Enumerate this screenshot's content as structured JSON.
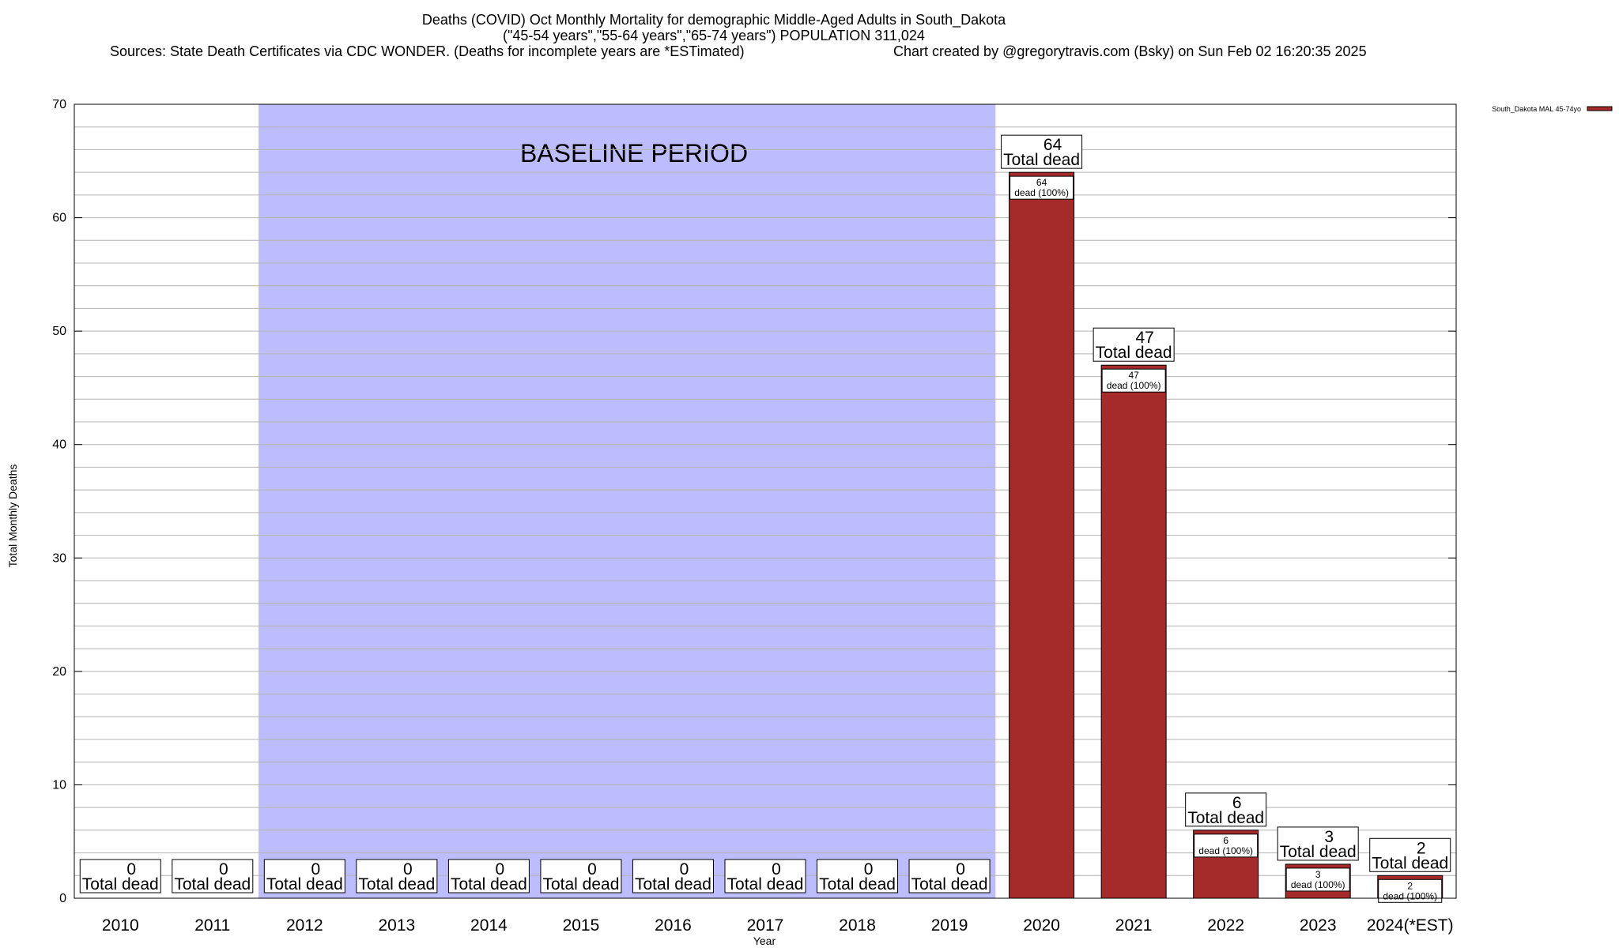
{
  "chart_data": {
    "type": "bar",
    "title": "Deaths (COVID) Oct Monthly Mortality for demographic Middle-Aged Adults in South_Dakota",
    "subtitle": "(\"45-54 years\",\"55-64 years\",\"65-74 years\") POPULATION 311,024",
    "sources": "Sources: State Death Certificates via CDC WONDER. (Deaths for incomplete years are *ESTimated)",
    "credit": "Chart created by @gregorytravis.com (Bsky) on Sun Feb 02 16:20:35 2025",
    "xlabel": "Year",
    "ylabel": "Total Monthly Deaths",
    "ylim": [
      0,
      70
    ],
    "yticks": [
      0,
      10,
      20,
      30,
      40,
      50,
      60,
      70
    ],
    "minor_grid_step": 2,
    "grid": true,
    "legend_position": "top-right",
    "baseline_label": "BASELINE PERIOD",
    "baseline_range": [
      "2012",
      "2019"
    ],
    "total_label_text": "Total dead",
    "inner_label_text": "dead (100%)",
    "categories": [
      "2010",
      "2011",
      "2012",
      "2013",
      "2014",
      "2015",
      "2016",
      "2017",
      "2018",
      "2019",
      "2020",
      "2021",
      "2022",
      "2023",
      "2024(*EST)"
    ],
    "series": [
      {
        "name": "South_Dakota MAL 45-74yo",
        "color": "#a52a2a",
        "values": [
          0,
          0,
          0,
          0,
          0,
          0,
          0,
          0,
          0,
          0,
          64,
          47,
          6,
          3,
          2
        ]
      }
    ],
    "colors": {
      "baseline_fill": "#bdbdfd",
      "bar": "#a52a2a",
      "grid": "#b4b4b4"
    }
  }
}
